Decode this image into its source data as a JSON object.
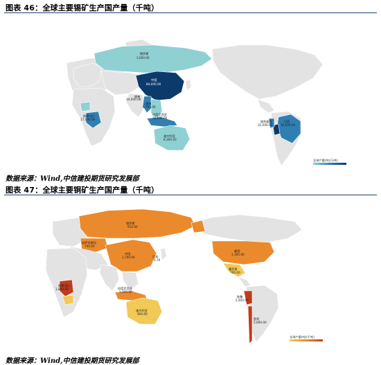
{
  "figure46": {
    "title": "图表 46：全球主要锡矿生产国产量（千吨）",
    "source": "数据来源：Wind,中信建投期货研究发展部",
    "legend_title": "全球产量(吨)(万吨)",
    "colors": {
      "land": "#e3e3e3",
      "low": "#8fd0d3",
      "mid": "#2f7fb3",
      "high": "#0c3a6b"
    },
    "labels": [
      {
        "name": "俄罗斯",
        "value": "3,000.00"
      },
      {
        "name": "中国",
        "value": "84,000.00"
      },
      {
        "name": "缅甸",
        "value": "34,000.00"
      },
      {
        "name": "越南",
        "value": "6,700.00"
      },
      {
        "name": "印度尼西亚",
        "value": "26,000.00"
      },
      {
        "name": "刚果(金)",
        "value": "17,000.00"
      },
      {
        "name": "澳大利亚",
        "value": "8,300.00"
      },
      {
        "name": "玻利维亚",
        "value": "31,500.00"
      },
      {
        "name": "巴西",
        "value": "16,000.00"
      }
    ]
  },
  "figure47": {
    "title": "图表 47：全球主要铜矿生产国产量（千吨）",
    "source": "数据来源：Wind,中信建投期货研究发展部",
    "legend_title": "全球产量(吨)(千吨)",
    "colors": {
      "land": "#e3e3e3",
      "low": "#f1c956",
      "mid": "#ea8a2c",
      "high": "#c23a1c"
    },
    "labels": [
      {
        "name": "俄罗斯",
        "value": "910.00"
      },
      {
        "name": "哈萨克斯坦",
        "value": "740.00"
      },
      {
        "name": "中国",
        "value": "1,700.00"
      },
      {
        "name": "日本",
        "value": "0.70"
      },
      {
        "name": "印度尼西亚",
        "value": "1,000.00"
      },
      {
        "name": "澳大利亚",
        "value": "900.00"
      },
      {
        "name": "美国",
        "value": "1,300.00"
      },
      {
        "name": "墨西哥",
        "value": "700.00"
      },
      {
        "name": "刚果(金)",
        "value": "1,800.00"
      },
      {
        "name": "秘鲁",
        "value": "2,400.00"
      },
      {
        "name": "智利",
        "value": "5,600.00"
      }
    ]
  }
}
